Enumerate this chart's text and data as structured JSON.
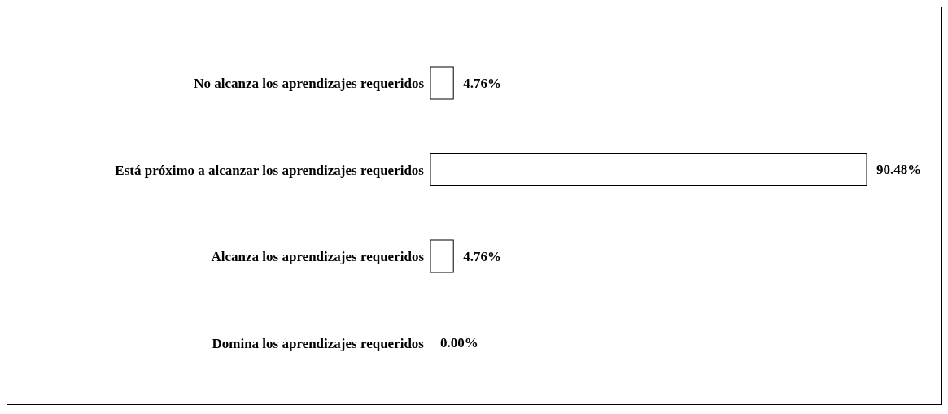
{
  "chart_data": {
    "type": "bar",
    "orientation": "horizontal",
    "categories": [
      "No alcanza los aprendizajes requeridos",
      "Está próximo a alcanzar los aprendizajes requeridos",
      "Alcanza los aprendizajes requeridos",
      "Domina los aprendizajes requeridos"
    ],
    "values": [
      4.76,
      90.48,
      4.76,
      0.0
    ],
    "value_labels": [
      "4.76%",
      "90.48%",
      "4.76%",
      "0.00%"
    ],
    "color": "#ffffff",
    "grid": false,
    "legend": false
  }
}
